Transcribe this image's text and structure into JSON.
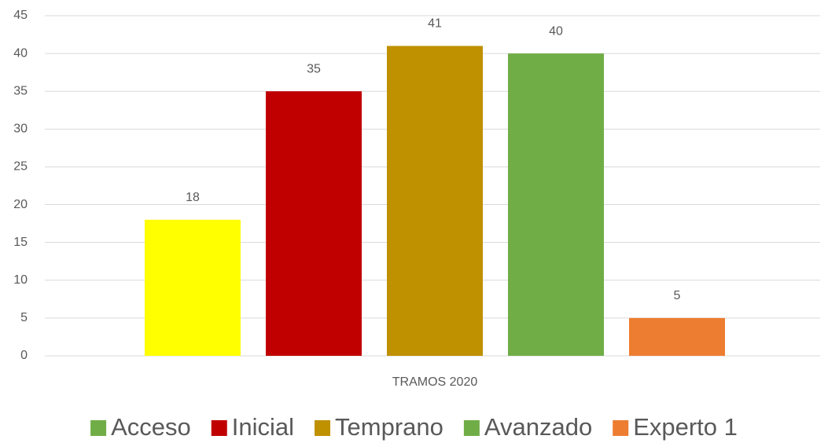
{
  "chart_data": {
    "type": "bar",
    "categories": [
      "TRAMOS 2020"
    ],
    "series": [
      {
        "name": "Acceso",
        "color": "#ffff00",
        "legend_color": "#70ad47",
        "values": [
          18
        ]
      },
      {
        "name": "Inicial",
        "color": "#c00000",
        "values": [
          35
        ]
      },
      {
        "name": "Temprano",
        "color": "#bf9000",
        "values": [
          41
        ]
      },
      {
        "name": "Avanzado",
        "color": "#70ad47",
        "values": [
          40
        ]
      },
      {
        "name": "Experto 1",
        "color": "#ed7d31",
        "values": [
          5
        ]
      }
    ],
    "ylim": [
      0,
      45
    ],
    "yticks": [
      0,
      5,
      10,
      15,
      20,
      25,
      30,
      35,
      40,
      45
    ],
    "grid": true
  }
}
